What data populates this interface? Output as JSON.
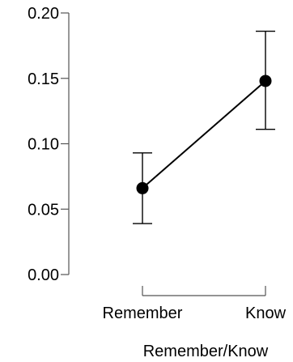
{
  "chart_data": {
    "type": "line",
    "title": "",
    "xlabel": "Remember/Know",
    "ylabel": "",
    "categories": [
      "Remember",
      "Know"
    ],
    "series": [
      {
        "values": [
          0.066,
          0.148
        ],
        "error_low": [
          0.039,
          0.111
        ],
        "error_high": [
          0.093,
          0.186
        ]
      }
    ],
    "ylim": [
      0,
      0.2
    ],
    "yticks": [
      "0.00",
      "0.05",
      "0.10",
      "0.15",
      "0.20"
    ],
    "grid": false,
    "legend": "none",
    "colors": {
      "line": "#000000",
      "axis": "#555555"
    }
  }
}
